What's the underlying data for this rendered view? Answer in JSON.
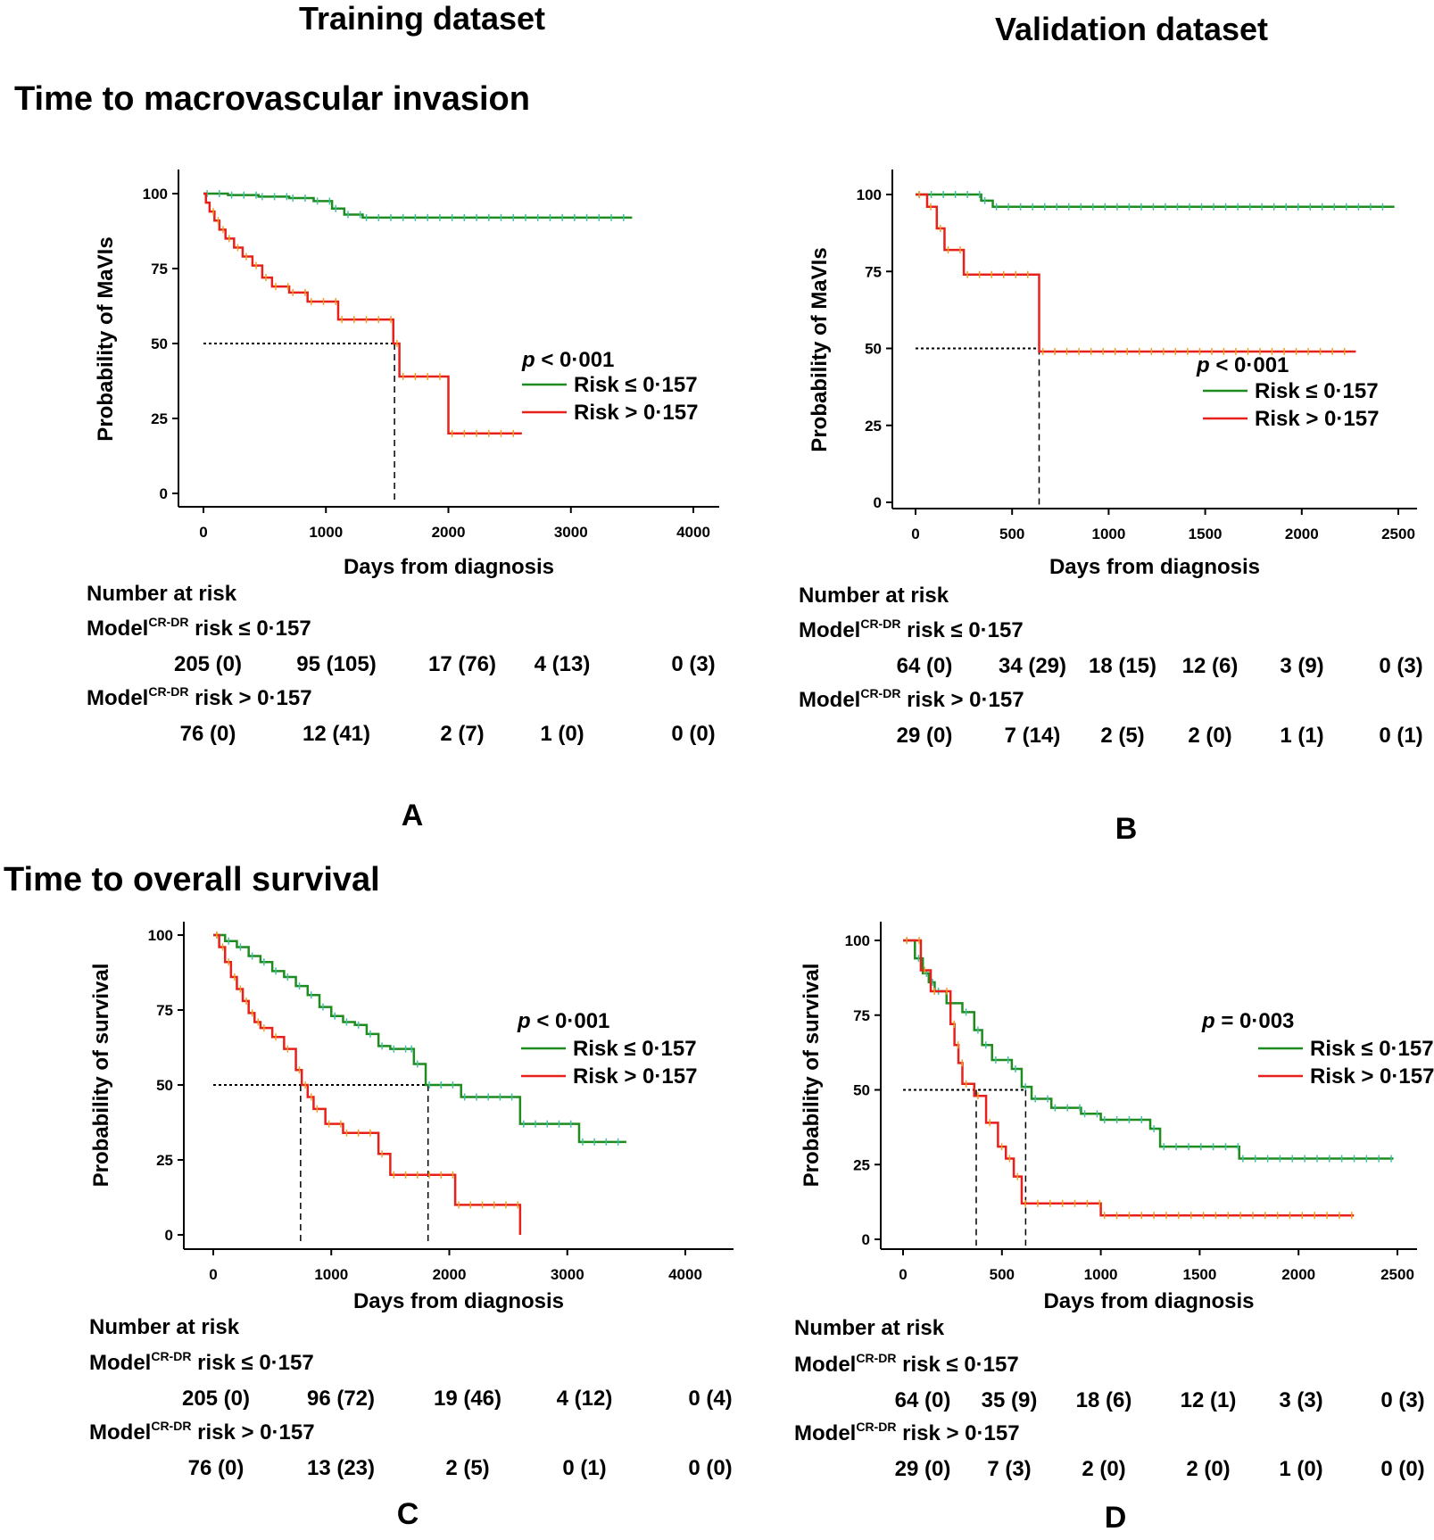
{
  "headers": {
    "training": "Training dataset",
    "validation": "Validation dataset"
  },
  "sections": {
    "mavi": "Time to macrovascular invasion",
    "os": "Time to overall survival"
  },
  "colors": {
    "low_risk": "#1e8c1e",
    "high_risk": "#e8201c",
    "censor_low": "#40c0a8",
    "censor_high": "#f0a020"
  },
  "chart_data": [
    {
      "id": "A",
      "letter": "A",
      "type": "line",
      "xlabel": "Days from diagnosis",
      "ylabel": "Probability of MaVIs",
      "xlim": [
        0,
        4000
      ],
      "xticks": [
        0,
        1000,
        2000,
        3000,
        4000
      ],
      "ylim": [
        0,
        100
      ],
      "yticks": [
        0,
        25,
        50,
        75,
        100
      ],
      "p_label": "p",
      "p_text": " < 0·001",
      "legend": [
        "Risk ≤ 0·157",
        "Risk > 0·157"
      ],
      "median_lines": [
        1560
      ],
      "series": [
        {
          "name": "Risk ≤ 0·157",
          "x": [
            0,
            200,
            450,
            700,
            900,
            1050,
            1150,
            1300,
            3500
          ],
          "y": [
            100,
            99.5,
            99,
            98.5,
            97.5,
            95,
            93,
            92,
            92
          ]
        },
        {
          "name": "Risk > 0·157",
          "x": [
            0,
            20,
            50,
            90,
            130,
            180,
            250,
            320,
            400,
            480,
            560,
            700,
            850,
            1100,
            1550,
            1600,
            2000,
            2600
          ],
          "y": [
            100,
            97,
            94,
            91,
            88,
            85,
            82,
            79,
            76,
            72,
            69,
            67,
            64,
            58,
            50,
            39,
            20,
            20
          ]
        }
      ],
      "risk_table": {
        "title": "Number at risk",
        "model": "Model",
        "sup": "CR-DR",
        "row1_label": " risk ≤ 0·157",
        "row2_label": " risk > 0·157",
        "row1": [
          "205 (0)",
          "95 (105)",
          "17 (76)",
          "4 (13)",
          "0 (3)"
        ],
        "row2": [
          "76  (0)",
          "12  (41)",
          "2  (7)",
          "1 (0)",
          "0 (0)"
        ]
      }
    },
    {
      "id": "B",
      "letter": "B",
      "type": "line",
      "xlabel": "Days from diagnosis",
      "ylabel": "Probability of MaVIs",
      "xlim": [
        0,
        2500
      ],
      "xticks": [
        0,
        500,
        1000,
        1500,
        2000,
        2500
      ],
      "ylim": [
        0,
        100
      ],
      "yticks": [
        0,
        25,
        50,
        75,
        100
      ],
      "p_label": "p",
      "p_text": " < 0·001",
      "legend": [
        "Risk ≤ 0·157",
        "Risk > 0·157"
      ],
      "median_lines": [
        640
      ],
      "series": [
        {
          "name": "Risk ≤ 0·157",
          "x": [
            0,
            340,
            400,
            2480
          ],
          "y": [
            100,
            98,
            96,
            96
          ]
        },
        {
          "name": "Risk > 0·157",
          "x": [
            0,
            60,
            110,
            150,
            250,
            640,
            2280
          ],
          "y": [
            100,
            96,
            89,
            82,
            74,
            49,
            49
          ]
        }
      ],
      "risk_table": {
        "title": "Number at risk",
        "model": "Model",
        "sup": "CR-DR",
        "row1_label": " risk ≤ 0·157",
        "row2_label": " risk > 0·157",
        "row1": [
          "64 (0)",
          "34 (29)",
          "18 (15)",
          "12 (6)",
          "3 (9)",
          "0 (3)"
        ],
        "row2": [
          "29  (0)",
          "7  (14)",
          "2 (5)",
          "2 (0)",
          "1 (1)",
          "0 (1)"
        ]
      }
    },
    {
      "id": "C",
      "letter": "C",
      "type": "line",
      "xlabel": "Days from diagnosis",
      "ylabel": "Probability of survival",
      "xlim": [
        0,
        4000
      ],
      "xticks": [
        0,
        1000,
        2000,
        3000,
        4000
      ],
      "ylim": [
        0,
        100
      ],
      "yticks": [
        0,
        25,
        50,
        75,
        100
      ],
      "p_label": "p",
      "p_text": " < 0·001",
      "legend": [
        "Risk ≤ 0·157",
        "Risk > 0·157"
      ],
      "median_lines": [
        740,
        1820
      ],
      "series": [
        {
          "name": "Risk ≤ 0·157",
          "x": [
            0,
            100,
            200,
            300,
            400,
            500,
            600,
            700,
            800,
            900,
            1000,
            1100,
            1200,
            1300,
            1400,
            1500,
            1650,
            1700,
            1800,
            2100,
            2400,
            2600,
            2700,
            3100,
            3500
          ],
          "y": [
            100,
            98,
            96,
            93,
            91,
            88,
            86,
            83,
            80,
            76,
            73,
            71,
            70,
            67,
            63,
            62,
            62,
            57,
            50,
            46,
            46,
            37,
            37,
            31,
            31
          ]
        },
        {
          "name": "Risk > 0·157",
          "x": [
            0,
            50,
            100,
            150,
            200,
            250,
            300,
            350,
            400,
            500,
            600,
            700,
            750,
            800,
            850,
            950,
            1100,
            1400,
            1500,
            2000,
            2050,
            2550,
            2600
          ],
          "y": [
            100,
            96,
            91,
            86,
            82,
            78,
            74,
            71,
            69,
            66,
            62,
            55,
            50,
            46,
            42,
            37,
            34,
            27,
            20,
            20,
            10,
            10,
            0
          ]
        }
      ],
      "risk_table": {
        "title": "Number at risk",
        "model": "Model",
        "sup": "CR-DR",
        "row1_label": " risk ≤ 0·157",
        "row2_label": " risk > 0·157",
        "row1": [
          "205 (0)",
          "96 (72)",
          "19 (46)",
          "4 (12)",
          "0 (4)"
        ],
        "row2": [
          "76 (0)",
          "13 (23)",
          "2 (5)",
          "0 (1)",
          "0 (0)"
        ]
      }
    },
    {
      "id": "D",
      "letter": "D",
      "type": "line",
      "xlabel": "Days from diagnosis",
      "ylabel": "Probability of survival",
      "xlim": [
        0,
        2500
      ],
      "xticks": [
        0,
        500,
        1000,
        1500,
        2000,
        2500
      ],
      "ylim": [
        0,
        100
      ],
      "yticks": [
        0,
        25,
        50,
        75,
        100
      ],
      "p_label": "p",
      "p_text": " = 0·003",
      "legend": [
        "Risk ≤ 0·157",
        "Risk > 0·157"
      ],
      "median_lines": [
        370,
        620
      ],
      "series": [
        {
          "name": "Risk ≤ 0·157",
          "x": [
            0,
            60,
            100,
            130,
            160,
            220,
            300,
            360,
            400,
            450,
            550,
            600,
            650,
            750,
            900,
            1000,
            1250,
            1300,
            1700,
            2480
          ],
          "y": [
            100,
            94,
            89,
            86,
            83,
            79,
            76,
            70,
            65,
            60,
            57,
            51,
            47,
            44,
            42,
            40,
            37,
            31,
            27,
            27
          ]
        },
        {
          "name": "Risk > 0·157",
          "x": [
            0,
            90,
            140,
            240,
            260,
            280,
            300,
            360,
            420,
            480,
            520,
            560,
            600,
            1000,
            2280
          ],
          "y": [
            100,
            90,
            83,
            72,
            65,
            59,
            52,
            48,
            39,
            31,
            27,
            21,
            12,
            8,
            8
          ]
        }
      ],
      "risk_table": {
        "title": "Number at risk",
        "model": "Model",
        "sup": "CR-DR",
        "row1_label": " risk ≤ 0·157",
        "row2_label": " risk > 0·157",
        "row1": [
          "64 (0)",
          "35 (9)",
          "18 (6)",
          "12 (1)",
          "3 (3)",
          "0 (3)"
        ],
        "row2": [
          "29 (0)",
          "7 (3)",
          "2 (0)",
          "2 (0)",
          "1 (0)",
          "0 (0)"
        ]
      }
    }
  ]
}
